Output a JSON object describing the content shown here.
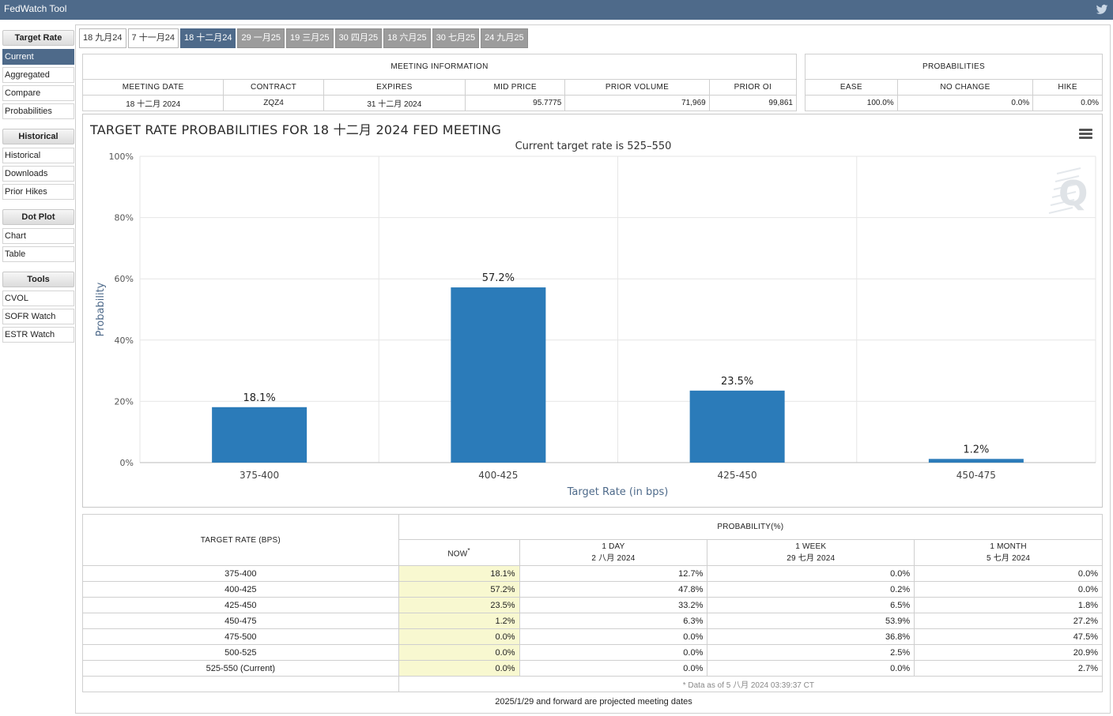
{
  "app": {
    "title": "FedWatch Tool"
  },
  "sidebar": {
    "sections": [
      {
        "head": "Target Rate",
        "items": [
          "Current",
          "Aggregated",
          "Compare",
          "Probabilities"
        ],
        "active": 0
      },
      {
        "head": "Historical",
        "items": [
          "Historical",
          "Downloads",
          "Prior Hikes"
        ]
      },
      {
        "head": "Dot Plot",
        "items": [
          "Chart",
          "Table"
        ]
      },
      {
        "head": "Tools",
        "items": [
          "CVOL",
          "SOFR Watch",
          "ESTR Watch"
        ]
      }
    ]
  },
  "tabs": [
    {
      "label": "18 九月24",
      "state": "normal"
    },
    {
      "label": "7 十一月24",
      "state": "normal"
    },
    {
      "label": "18 十二月24",
      "state": "selected"
    },
    {
      "label": "29 一月25",
      "state": "future"
    },
    {
      "label": "19 三月25",
      "state": "future"
    },
    {
      "label": "30 四月25",
      "state": "future"
    },
    {
      "label": "18 六月25",
      "state": "future"
    },
    {
      "label": "30 七月25",
      "state": "future"
    },
    {
      "label": "24 九月25",
      "state": "future"
    }
  ],
  "meeting_info": {
    "caption": "MEETING INFORMATION",
    "headers": [
      "MEETING DATE",
      "CONTRACT",
      "EXPIRES",
      "MID PRICE",
      "PRIOR VOLUME",
      "PRIOR OI"
    ],
    "values": [
      "18 十二月 2024",
      "ZQZ4",
      "31 十二月 2024",
      "95.7775",
      "71,969",
      "99,861"
    ]
  },
  "probabilities": {
    "caption": "PROBABILITIES",
    "headers": [
      "EASE",
      "NO CHANGE",
      "HIKE"
    ],
    "values": [
      "100.0%",
      "0.0%",
      "0.0%"
    ]
  },
  "chart": {
    "title": "TARGET RATE PROBABILITIES FOR 18 十二月 2024 FED MEETING",
    "subtitle": "Current target rate is 525–550"
  },
  "chart_data": {
    "type": "bar",
    "title": "TARGET RATE PROBABILITIES FOR 18 十二月 2024 FED MEETING",
    "subtitle": "Current target rate is 525–550",
    "categories": [
      "375-400",
      "400-425",
      "425-450",
      "450-475"
    ],
    "values": [
      18.1,
      57.2,
      23.5,
      1.2
    ],
    "data_labels": [
      "18.1%",
      "57.2%",
      "23.5%",
      "1.2%"
    ],
    "xlabel": "Target Rate (in bps)",
    "ylabel": "Probability",
    "ylim": [
      0,
      100
    ],
    "yticks": [
      0,
      20,
      40,
      60,
      80,
      100
    ],
    "ytick_labels": [
      "0%",
      "20%",
      "40%",
      "60%",
      "80%",
      "100%"
    ],
    "grid": true,
    "bar_color": "#2b7bb9"
  },
  "prob_table": {
    "rate_header": "TARGET RATE (BPS)",
    "prob_header": "PROBABILITY(%)",
    "col_now": "NOW",
    "col_now_mark": "*",
    "cols": [
      {
        "label": "1 DAY",
        "date": "2 八月 2024"
      },
      {
        "label": "1 WEEK",
        "date": "29 七月 2024"
      },
      {
        "label": "1 MONTH",
        "date": "5 七月 2024"
      }
    ],
    "rows": [
      {
        "rate": "375-400",
        "now": "18.1%",
        "day": "12.7%",
        "week": "0.0%",
        "month": "0.0%"
      },
      {
        "rate": "400-425",
        "now": "57.2%",
        "day": "47.8%",
        "week": "0.2%",
        "month": "0.0%"
      },
      {
        "rate": "425-450",
        "now": "23.5%",
        "day": "33.2%",
        "week": "6.5%",
        "month": "1.8%"
      },
      {
        "rate": "450-475",
        "now": "1.2%",
        "day": "6.3%",
        "week": "53.9%",
        "month": "27.2%"
      },
      {
        "rate": "475-500",
        "now": "0.0%",
        "day": "0.0%",
        "week": "36.8%",
        "month": "47.5%"
      },
      {
        "rate": "500-525",
        "now": "0.0%",
        "day": "0.0%",
        "week": "2.5%",
        "month": "20.9%"
      },
      {
        "rate": "525-550 (Current)",
        "now": "0.0%",
        "day": "0.0%",
        "week": "0.0%",
        "month": "2.7%"
      }
    ],
    "note": "* Data as of 5 八月 2024 03:39:37 CT"
  },
  "footnote": "2025/1/29 and forward are projected meeting dates",
  "colors": {
    "header": "#4e6a8a",
    "bar": "#2b7bb9",
    "now_highlight": "#f8f8d0"
  }
}
